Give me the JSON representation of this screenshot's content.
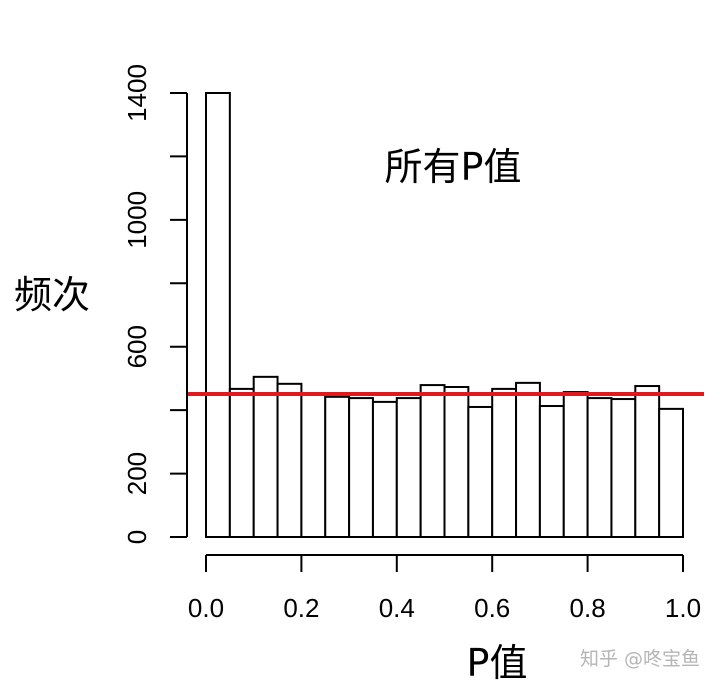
{
  "chart_data": {
    "type": "bar",
    "subtype": "histogram",
    "title": "所有P值",
    "xlabel": "P值",
    "ylabel": "频次",
    "bin_width": 0.05,
    "bin_edges": [
      0.0,
      0.05,
      0.1,
      0.15,
      0.2,
      0.25,
      0.3,
      0.35,
      0.4,
      0.45,
      0.5,
      0.55,
      0.6,
      0.65,
      0.7,
      0.75,
      0.8,
      0.85,
      0.9,
      0.95,
      1.0
    ],
    "categories": [
      "0-0.05",
      "0.05-0.1",
      "0.1-0.15",
      "0.15-0.2",
      "0.2-0.25",
      "0.25-0.3",
      "0.3-0.35",
      "0.35-0.4",
      "0.4-0.45",
      "0.45-0.5",
      "0.5-0.55",
      "0.55-0.6",
      "0.6-0.65",
      "0.65-0.7",
      "0.7-0.75",
      "0.75-0.8",
      "0.8-0.85",
      "0.85-0.9",
      "0.9-0.95",
      "0.95-1.0"
    ],
    "values": [
      1400,
      467,
      505,
      483,
      448,
      442,
      438,
      426,
      438,
      479,
      473,
      410,
      467,
      486,
      413,
      457,
      438,
      435,
      476,
      404
    ],
    "reference_line": {
      "value": 451,
      "color": "#e0191f",
      "orientation": "horizontal"
    },
    "xlim": [
      0.0,
      1.0
    ],
    "ylim": [
      0,
      1400
    ],
    "xticks": [
      "0.0",
      "0.2",
      "0.4",
      "0.6",
      "0.8",
      "1.0"
    ],
    "yticks": [
      "0",
      "200",
      "600",
      "1000",
      "1400"
    ],
    "ytick_positions": [
      0,
      200,
      400,
      600,
      800,
      1000,
      1200,
      1400
    ],
    "grid": false,
    "legend": null,
    "bar_fill": "#ffffff",
    "bar_stroke": "#000000"
  },
  "watermark": "知乎 @咚宝鱼"
}
